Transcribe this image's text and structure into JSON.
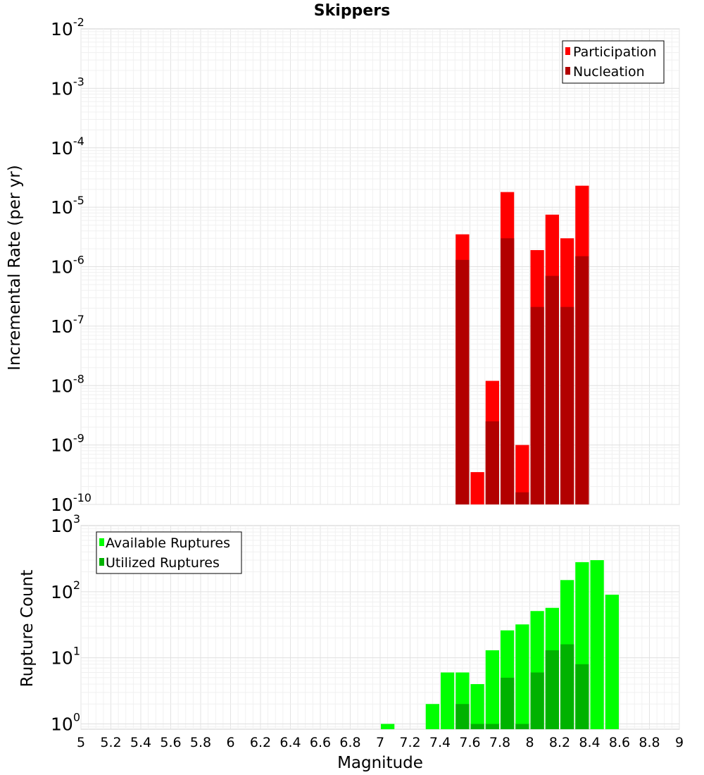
{
  "chart_data": [
    {
      "type": "bar",
      "title": "Skippers",
      "ylabel": "Incremental Rate (per yr)",
      "y_scale": "log",
      "ylim_exponents": [
        -10,
        -2
      ],
      "y_ticks": [
        {
          "base": "10",
          "exp": "-2"
        },
        {
          "base": "10",
          "exp": "-3"
        },
        {
          "base": "10",
          "exp": "-4"
        },
        {
          "base": "10",
          "exp": "-5"
        },
        {
          "base": "10",
          "exp": "-6"
        },
        {
          "base": "10",
          "exp": "-7"
        },
        {
          "base": "10",
          "exp": "-8"
        },
        {
          "base": "10",
          "exp": "-9"
        },
        {
          "base": "10",
          "exp": "-10"
        }
      ],
      "legend_position": "top-right",
      "bin_width": 0.1,
      "grid": true,
      "series": [
        {
          "name": "Participation",
          "color": "#ff0000",
          "x": [
            7.55,
            7.65,
            7.75,
            7.85,
            7.95,
            8.05,
            8.15,
            8.25,
            8.35
          ],
          "values": [
            3.5e-06,
            3.5e-10,
            1.2e-08,
            1.8e-05,
            1e-09,
            1.9e-06,
            7.5e-06,
            3e-06,
            2.3e-05
          ]
        },
        {
          "name": "Nucleation",
          "color": "#b20000",
          "x": [
            7.55,
            7.75,
            7.85,
            7.95,
            8.05,
            8.15,
            8.25,
            8.35
          ],
          "values": [
            1.3e-06,
            2.5e-09,
            3e-06,
            1.6e-10,
            2.1e-07,
            7e-07,
            2.1e-07,
            1.5e-06
          ]
        }
      ]
    },
    {
      "type": "bar",
      "xlabel": "Magnitude",
      "ylabel": "Rupture Count",
      "y_scale": "log",
      "ylim_exponents": [
        0,
        3
      ],
      "y_ticks": [
        {
          "base": "10",
          "exp": "3"
        },
        {
          "base": "10",
          "exp": "2"
        },
        {
          "base": "10",
          "exp": "1"
        },
        {
          "base": "10",
          "exp": "0"
        }
      ],
      "xlim": [
        5,
        9
      ],
      "x_ticks": [
        "5",
        "5.2",
        "5.4",
        "5.6",
        "5.8",
        "6",
        "6.2",
        "6.4",
        "6.6",
        "6.8",
        "7",
        "7.2",
        "7.4",
        "7.6",
        "7.8",
        "8",
        "8.2",
        "8.4",
        "8.6",
        "8.8",
        "9"
      ],
      "legend_position": "top-left",
      "bin_width": 0.1,
      "grid": true,
      "series": [
        {
          "name": "Available Ruptures",
          "color": "#00ff00",
          "x": [
            7.05,
            7.35,
            7.45,
            7.55,
            7.65,
            7.75,
            7.85,
            7.95,
            8.05,
            8.15,
            8.25,
            8.35,
            8.45,
            8.55
          ],
          "values": [
            1,
            2,
            6,
            6,
            4,
            13,
            26,
            32,
            51,
            57,
            150,
            280,
            300,
            90
          ]
        },
        {
          "name": "Utilized Ruptures",
          "color": "#00b200",
          "x": [
            7.55,
            7.65,
            7.75,
            7.85,
            7.95,
            8.05,
            8.15,
            8.25,
            8.35
          ],
          "values": [
            2,
            1,
            1,
            5,
            1,
            6,
            13,
            16,
            8
          ]
        }
      ]
    }
  ]
}
